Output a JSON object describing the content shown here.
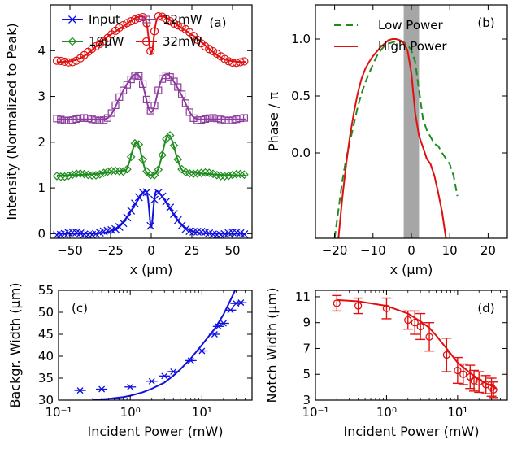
{
  "chart_data": [
    {
      "panel": "(a)",
      "type": "line",
      "xlabel": "x (μm)",
      "ylabel": "Intensity (Normalized to Peak)",
      "xlim": [
        -62,
        62
      ],
      "ylim": [
        -0.1,
        5.0
      ],
      "xticks": [
        -50,
        -25,
        0,
        25,
        50
      ],
      "xtick_labels": [
        "−50",
        "−25",
        "0",
        "25",
        "50"
      ],
      "yticks": [
        0,
        1,
        2,
        3,
        4
      ],
      "ytick_labels": [
        "0",
        "1",
        "2",
        "3",
        "4"
      ],
      "legend": "top",
      "series": [
        {
          "name": "Input",
          "color": "#1010e0",
          "marker": "x",
          "offset": 0.0,
          "center_dip": 0.85,
          "notch_w": 1.2,
          "bg_w": 8.0,
          "peak_pos": 0,
          "fit_sigma": 10.5
        },
        {
          "name": "19μW",
          "color": "#1e8c1e",
          "marker": "diamond",
          "offset": 1.27,
          "center_dip": 0.95,
          "notch_w": 5.0,
          "bg_w": 22.0,
          "peak_pos": 8,
          "scale": 1.0
        },
        {
          "name": "12mW",
          "color": "#8c3c9c",
          "marker": "square",
          "offset": 2.5,
          "center_dip": 0.8,
          "notch_w": 3.0,
          "bg_w": 26.0,
          "peak_pos": 11,
          "scale": 1.0
        },
        {
          "name": "32mW",
          "color": "#e01010",
          "marker": "circle",
          "offset": 3.75,
          "center_dip": 0.8,
          "notch_w": 1.5,
          "bg_w": 38.0,
          "peak_pos": 10,
          "scale": 1.0
        }
      ]
    },
    {
      "panel": "(b)",
      "type": "line",
      "xlabel": "x (μm)",
      "ylabel": "Phase / π",
      "xlim": [
        -25,
        25
      ],
      "ylim": [
        -0.75,
        1.3
      ],
      "xticks": [
        -20,
        -10,
        0,
        10,
        20
      ],
      "xtick_labels": [
        "−20",
        "−10",
        "0",
        "10",
        "20"
      ],
      "yticks": [
        0.0,
        0.5,
        1.0
      ],
      "ytick_labels": [
        "0.0",
        "0.5",
        "1.0"
      ],
      "shaded_band": [
        -2,
        2
      ],
      "legend": "top-right",
      "series": [
        {
          "name": "Low Power",
          "color": "#1e8c1e",
          "dash": "dashed",
          "x": [
            -20,
            -19,
            -18,
            -17,
            -16,
            -15,
            -14,
            -13,
            -12,
            -11,
            -10,
            -9,
            -8,
            -7,
            -6,
            -5,
            -4,
            -3,
            -2,
            -1,
            0,
            1,
            2,
            3,
            4,
            5,
            6,
            7,
            8,
            9,
            10,
            11,
            12
          ],
          "y": [
            -0.75,
            -0.5,
            -0.25,
            -0.05,
            0.1,
            0.25,
            0.4,
            0.52,
            0.62,
            0.7,
            0.78,
            0.85,
            0.9,
            0.94,
            0.96,
            0.97,
            0.98,
            0.98,
            0.97,
            0.95,
            0.9,
            0.8,
            0.55,
            0.3,
            0.2,
            0.14,
            0.08,
            0.06,
            0.0,
            -0.05,
            -0.1,
            -0.2,
            -0.38
          ]
        },
        {
          "name": "High Power",
          "color": "#e01010",
          "dash": "solid",
          "x": [
            -19,
            -18,
            -17,
            -16,
            -15,
            -14,
            -13,
            -12,
            -11,
            -10,
            -9,
            -8,
            -7,
            -6,
            -5,
            -4,
            -3,
            -2,
            -1,
            0,
            1,
            2,
            3,
            4,
            5,
            6,
            7,
            8,
            9
          ],
          "y": [
            -0.75,
            -0.4,
            -0.1,
            0.15,
            0.35,
            0.52,
            0.65,
            0.74,
            0.8,
            0.85,
            0.89,
            0.93,
            0.96,
            0.99,
            1.0,
            1.0,
            0.99,
            0.97,
            0.9,
            0.7,
            0.35,
            0.15,
            0.05,
            -0.05,
            -0.1,
            -0.2,
            -0.35,
            -0.52,
            -0.75
          ]
        }
      ]
    },
    {
      "panel": "(c)",
      "type": "scatter",
      "xlabel": "Incident Power (mW)",
      "ylabel": "Backgr. Width (μm)",
      "xscale": "log",
      "xlim": [
        0.1,
        50
      ],
      "ylim": [
        30,
        55
      ],
      "xticks": [
        0.1,
        1,
        10
      ],
      "xtick_labels": [
        "10⁻¹",
        "10⁰",
        "10¹"
      ],
      "yticks": [
        30,
        35,
        40,
        45,
        50,
        55
      ],
      "ytick_labels": [
        "30",
        "35",
        "40",
        "45",
        "50",
        "55"
      ],
      "series": [
        {
          "name": "",
          "color": "#1010e0",
          "marker": "x",
          "x": [
            0.2,
            0.4,
            1.0,
            2.0,
            3.0,
            4.0,
            7.0,
            10.0,
            15.0,
            17.0,
            20.0,
            25.0,
            30.0,
            35.0
          ],
          "y": [
            32.2,
            32.5,
            33.0,
            34.3,
            35.5,
            36.5,
            39.0,
            41.2,
            45.0,
            46.8,
            47.5,
            50.5,
            52.0,
            52.2
          ]
        },
        {
          "name": "fit",
          "color": "#1010e0",
          "marker": "none",
          "x": [
            0.3,
            0.5,
            0.8,
            1.0,
            1.5,
            2.0,
            3.0,
            4.0,
            5.0,
            7.0,
            10.0,
            15.0,
            20.0,
            25.0,
            30.0
          ],
          "y": [
            30.1,
            30.3,
            30.7,
            31.0,
            31.8,
            32.6,
            34.0,
            35.6,
            37.0,
            39.5,
            42.6,
            46.2,
            49.5,
            52.8,
            55.5
          ]
        }
      ]
    },
    {
      "panel": "(d)",
      "type": "scatter",
      "xlabel": "Incident Power (mW)",
      "ylabel": "Notch Width (μm)",
      "xscale": "log",
      "xlim": [
        0.1,
        50
      ],
      "ylim": [
        3,
        11.5
      ],
      "xticks": [
        0.1,
        1,
        10
      ],
      "xtick_labels": [
        "10⁻¹",
        "10⁰",
        "10¹"
      ],
      "yticks": [
        3,
        5,
        7,
        9,
        11
      ],
      "ytick_labels": [
        "3",
        "5",
        "7",
        "9",
        "11"
      ],
      "series": [
        {
          "name": "",
          "color": "#e01010",
          "marker": "circle",
          "x": [
            0.2,
            0.4,
            1.0,
            2.0,
            2.5,
            3.0,
            4.0,
            7.0,
            10.0,
            12.0,
            15.0,
            17.0,
            20.0,
            25.0,
            30.0,
            32.0
          ],
          "y": [
            10.5,
            10.3,
            10.1,
            9.2,
            9.0,
            8.7,
            7.9,
            6.5,
            5.3,
            5.0,
            4.8,
            4.5,
            4.4,
            4.2,
            4.0,
            3.8
          ],
          "err": [
            0.6,
            0.6,
            0.8,
            0.7,
            0.9,
            1.0,
            1.1,
            1.3,
            1.0,
            0.8,
            0.9,
            0.8,
            0.8,
            0.7,
            0.7,
            0.6
          ]
        },
        {
          "name": "fit",
          "color": "#e01010",
          "marker": "none",
          "x": [
            0.2,
            0.4,
            1.0,
            2.0,
            3.0,
            4.0,
            5.0,
            7.0,
            10.0,
            15.0,
            20.0,
            25.0,
            30.0,
            35.0
          ],
          "y": [
            10.75,
            10.65,
            10.3,
            9.7,
            9.1,
            8.6,
            8.0,
            7.0,
            5.9,
            5.1,
            4.6,
            4.3,
            4.1,
            3.9
          ]
        }
      ]
    }
  ]
}
